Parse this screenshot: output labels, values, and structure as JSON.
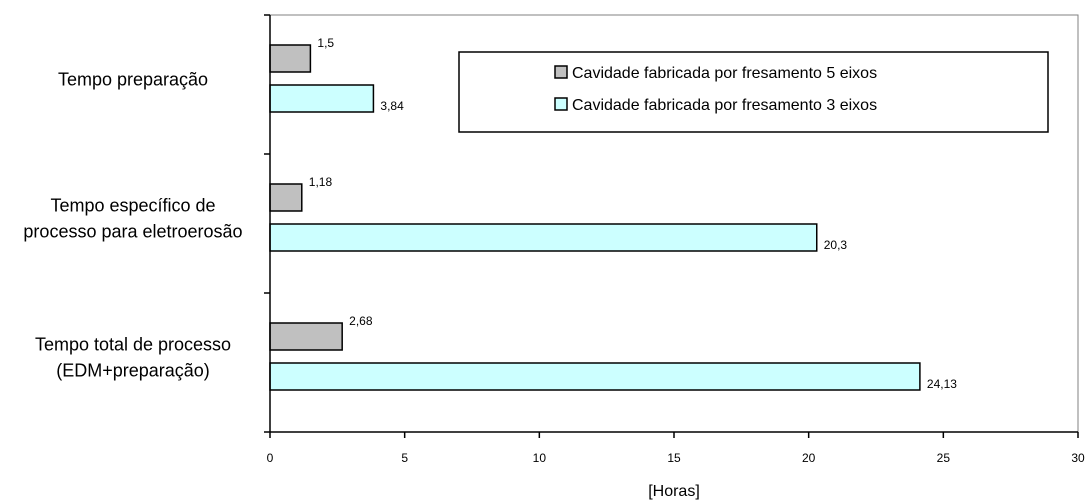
{
  "chart_data": {
    "type": "bar",
    "orientation": "horizontal",
    "categories": [
      [
        "Tempo preparação"
      ],
      [
        "Tempo específico de",
        "processo para eletroerosão"
      ],
      [
        "Tempo total de processo",
        "(EDM+preparação)"
      ]
    ],
    "series": [
      {
        "name": "Cavidade fabricada por fresamento 5 eixos",
        "color": "#c0c0c0",
        "values": [
          1.5,
          1.18,
          2.68
        ],
        "labels": [
          "1,5",
          "1,18",
          "2,68"
        ]
      },
      {
        "name": "Cavidade fabricada por fresamento 3 eixos",
        "color": "#ccffff",
        "values": [
          3.84,
          20.3,
          24.13
        ],
        "labels": [
          "3,84",
          "20,3",
          "24,13"
        ]
      }
    ],
    "xlim": [
      0,
      30
    ],
    "xticks": [
      0,
      5,
      10,
      15,
      20,
      25,
      30
    ],
    "xtick_labels": [
      "0",
      "5",
      "10",
      "15",
      "20",
      "25",
      "30"
    ],
    "xlabel": "[Horas]",
    "ylabel": "",
    "title": "",
    "grid": false,
    "legend_position": "top-right"
  }
}
